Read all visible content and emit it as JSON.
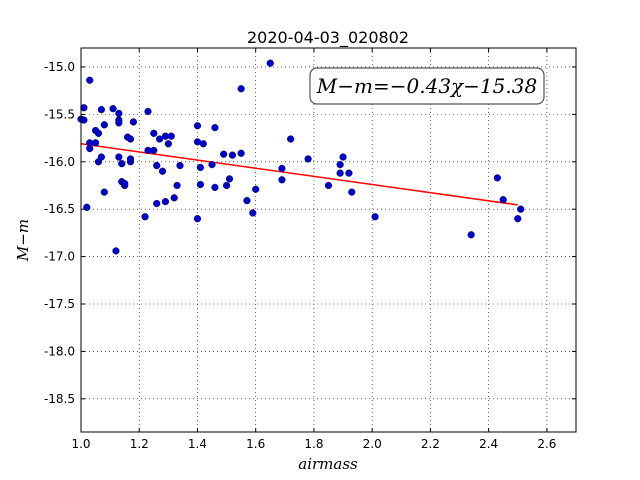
{
  "chart_data": {
    "type": "scatter",
    "title": "2020-04-03_020802",
    "xlabel": "airmass",
    "ylabel": "M−m",
    "xlim": [
      1.0,
      2.7
    ],
    "ylim": [
      -18.85,
      -14.8
    ],
    "y_inverted": true,
    "grid": true,
    "xticks": [
      "1.0",
      "1.2",
      "1.4",
      "1.6",
      "1.8",
      "2.0",
      "2.2",
      "2.4",
      "2.6"
    ],
    "yticks": [
      "-15.0",
      "-15.5",
      "-16.0",
      "-16.5",
      "-17.0",
      "-17.5",
      "-18.0",
      "-18.5"
    ],
    "annotation": "M−m=−0.43χ−15.38",
    "fit": {
      "slope": -0.43,
      "intercept": -15.38,
      "x_range": [
        1.0,
        2.5
      ],
      "color": "#ff0000"
    },
    "marker_color": "#0000cc",
    "points": [
      [
        1.0,
        -15.55
      ],
      [
        1.01,
        -15.56
      ],
      [
        1.01,
        -15.43
      ],
      [
        1.02,
        -16.48
      ],
      [
        1.03,
        -15.14
      ],
      [
        1.03,
        -15.8
      ],
      [
        1.03,
        -15.86
      ],
      [
        1.05,
        -15.8
      ],
      [
        1.05,
        -15.67
      ],
      [
        1.06,
        -15.7
      ],
      [
        1.06,
        -16.0
      ],
      [
        1.07,
        -15.45
      ],
      [
        1.07,
        -15.95
      ],
      [
        1.08,
        -15.61
      ],
      [
        1.08,
        -16.32
      ],
      [
        1.11,
        -15.44
      ],
      [
        1.12,
        -16.94
      ],
      [
        1.13,
        -15.56
      ],
      [
        1.13,
        -15.59
      ],
      [
        1.13,
        -15.49
      ],
      [
        1.13,
        -15.95
      ],
      [
        1.14,
        -16.02
      ],
      [
        1.14,
        -16.21
      ],
      [
        1.15,
        -16.25
      ],
      [
        1.15,
        -16.23
      ],
      [
        1.16,
        -15.74
      ],
      [
        1.17,
        -15.76
      ],
      [
        1.17,
        -16.0
      ],
      [
        1.17,
        -15.97
      ],
      [
        1.18,
        -15.58
      ],
      [
        1.22,
        -16.58
      ],
      [
        1.23,
        -15.47
      ],
      [
        1.23,
        -15.88
      ],
      [
        1.25,
        -15.88
      ],
      [
        1.25,
        -15.7
      ],
      [
        1.26,
        -16.04
      ],
      [
        1.26,
        -16.44
      ],
      [
        1.27,
        -15.76
      ],
      [
        1.28,
        -16.1
      ],
      [
        1.29,
        -15.73
      ],
      [
        1.29,
        -16.42
      ],
      [
        1.3,
        -15.81
      ],
      [
        1.31,
        -15.73
      ],
      [
        1.32,
        -16.38
      ],
      [
        1.33,
        -16.25
      ],
      [
        1.34,
        -16.04
      ],
      [
        1.4,
        -16.6
      ],
      [
        1.4,
        -15.62
      ],
      [
        1.4,
        -15.79
      ],
      [
        1.41,
        -16.06
      ],
      [
        1.41,
        -16.24
      ],
      [
        1.42,
        -15.81
      ],
      [
        1.45,
        -16.03
      ],
      [
        1.46,
        -16.27
      ],
      [
        1.46,
        -15.64
      ],
      [
        1.49,
        -15.92
      ],
      [
        1.5,
        -16.25
      ],
      [
        1.51,
        -16.18
      ],
      [
        1.52,
        -15.93
      ],
      [
        1.55,
        -15.23
      ],
      [
        1.55,
        -15.91
      ],
      [
        1.57,
        -16.41
      ],
      [
        1.59,
        -16.54
      ],
      [
        1.6,
        -16.29
      ],
      [
        1.65,
        -14.96
      ],
      [
        1.69,
        -16.07
      ],
      [
        1.69,
        -16.19
      ],
      [
        1.72,
        -15.76
      ],
      [
        1.78,
        -15.97
      ],
      [
        1.85,
        -16.25
      ],
      [
        1.89,
        -16.12
      ],
      [
        1.89,
        -16.03
      ],
      [
        1.9,
        -15.95
      ],
      [
        1.92,
        -16.12
      ],
      [
        1.93,
        -16.32
      ],
      [
        2.01,
        -16.58
      ],
      [
        2.34,
        -16.77
      ],
      [
        2.43,
        -16.17
      ],
      [
        2.45,
        -16.4
      ],
      [
        2.5,
        -16.6
      ],
      [
        2.51,
        -16.5
      ]
    ]
  }
}
